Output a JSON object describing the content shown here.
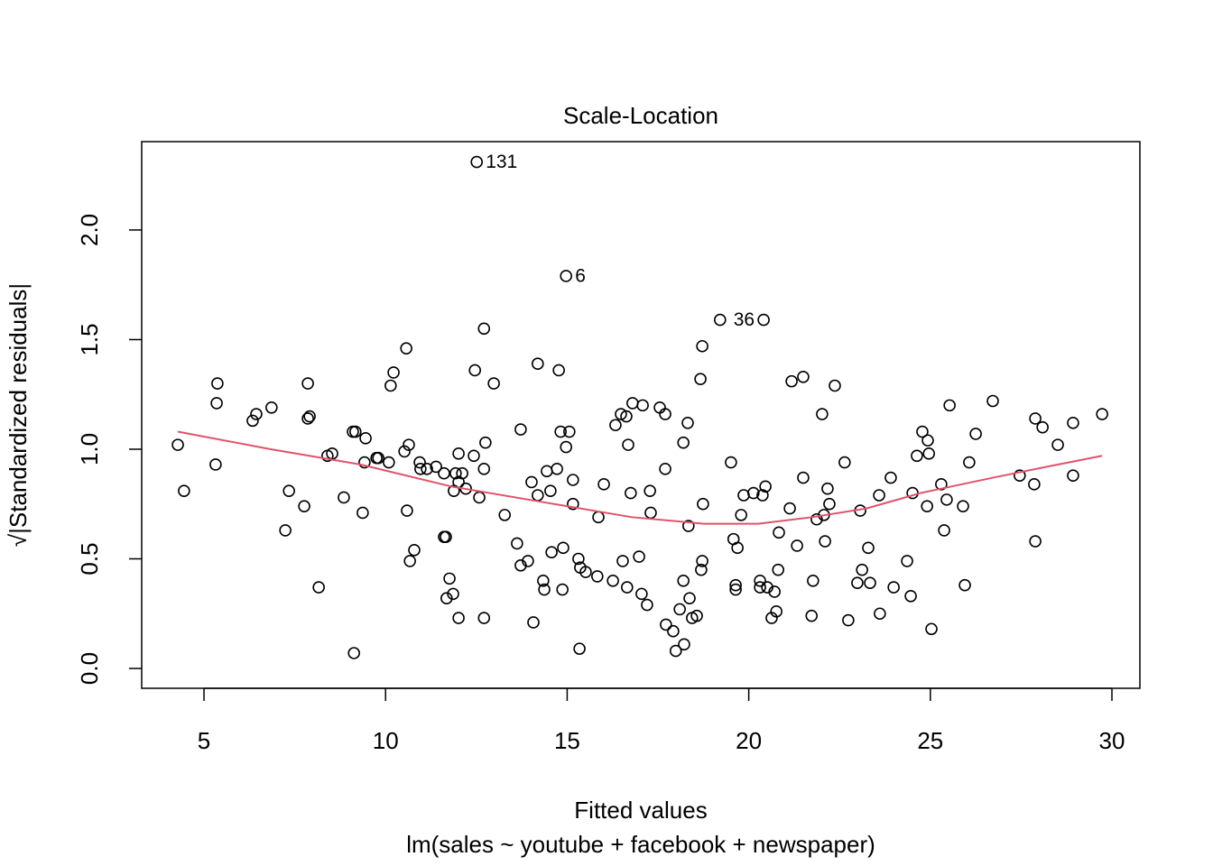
{
  "chart_data": {
    "type": "scatter",
    "title": "Scale-Location",
    "x_label": "Fitted values",
    "subtitle": "lm(sales ~ youtube + facebook + newspaper)",
    "y_label": "√|Standardized residuals|",
    "color": "#000000",
    "x": [
      4.28,
      4.45,
      5.32,
      5.37,
      5.35,
      6.34,
      6.44,
      6.86,
      7.24,
      7.34,
      7.76,
      7.86,
      7.86,
      7.91,
      8.16,
      8.4,
      8.53,
      8.85,
      9.1,
      9.17,
      9.13,
      9.37,
      9.42,
      9.45,
      9.75,
      9.8,
      10.09,
      10.14,
      10.22,
      10.52,
      10.57,
      10.59,
      10.64,
      10.67,
      10.79,
      10.94,
      10.96,
      11.14,
      11.39,
      11.61,
      11.61,
      11.66,
      11.68,
      11.76,
      11.86,
      11.88,
      11.93,
      12.01,
      12.01,
      12.01,
      12.11,
      12.21,
      12.43,
      12.46,
      12.51,
      12.58,
      12.71,
      12.71,
      12.71,
      12.75,
      12.98,
      13.28,
      13.62,
      13.72,
      13.72,
      13.92,
      14.02,
      14.07,
      14.19,
      14.19,
      14.34,
      14.37,
      14.44,
      14.54,
      14.57,
      14.72,
      14.77,
      14.82,
      14.87,
      14.89,
      14.97,
      14.97,
      15.06,
      15.16,
      15.16,
      15.31,
      15.34,
      15.36,
      15.51,
      15.83,
      15.86,
      16.01,
      16.26,
      16.33,
      16.48,
      16.53,
      16.63,
      16.65,
      16.68,
      16.75,
      16.8,
      16.98,
      17.05,
      17.08,
      17.2,
      17.28,
      17.3,
      17.55,
      17.7,
      17.7,
      17.72,
      17.92,
      17.99,
      18.1,
      18.2,
      18.2,
      18.22,
      18.32,
      18.34,
      18.37,
      18.44,
      18.57,
      18.67,
      18.69,
      18.72,
      18.72,
      18.74,
      19.21,
      19.51,
      19.58,
      19.64,
      19.64,
      19.69,
      19.79,
      19.86,
      20.13,
      20.31,
      20.31,
      20.38,
      20.41,
      20.46,
      20.51,
      20.63,
      20.71,
      20.76,
      20.81,
      20.83,
      21.13,
      21.18,
      21.33,
      21.5,
      21.5,
      21.73,
      21.77,
      21.87,
      22.02,
      22.07,
      22.1,
      22.17,
      22.22,
      22.37,
      22.64,
      22.74,
      22.99,
      23.07,
      23.12,
      23.29,
      23.34,
      23.59,
      23.61,
      23.91,
      23.99,
      24.36,
      24.46,
      24.51,
      24.63,
      24.78,
      24.91,
      24.93,
      24.96,
      25.03,
      25.3,
      25.38,
      25.45,
      25.53,
      25.9,
      25.95,
      26.07,
      26.25,
      26.72,
      27.46,
      27.86,
      27.89,
      27.89,
      28.09,
      28.51,
      28.93,
      28.93,
      29.73
    ],
    "values": [
      1.02,
      0.81,
      0.93,
      1.3,
      1.21,
      1.13,
      1.16,
      1.19,
      0.63,
      0.81,
      0.74,
      1.3,
      1.14,
      1.15,
      0.37,
      0.97,
      0.98,
      0.78,
      1.08,
      1.08,
      0.07,
      0.71,
      0.94,
      1.05,
      0.96,
      0.96,
      0.94,
      1.29,
      1.35,
      0.99,
      1.46,
      0.72,
      1.02,
      0.49,
      0.54,
      0.94,
      0.91,
      0.91,
      0.92,
      0.89,
      0.6,
      0.6,
      0.32,
      0.41,
      0.34,
      0.81,
      0.89,
      0.85,
      0.23,
      0.98,
      0.89,
      0.82,
      0.97,
      1.36,
      2.31,
      0.78,
      1.55,
      0.91,
      0.23,
      1.03,
      1.3,
      0.7,
      0.57,
      1.09,
      0.47,
      0.49,
      0.85,
      0.21,
      1.39,
      0.79,
      0.4,
      0.36,
      0.9,
      0.81,
      0.53,
      0.91,
      1.36,
      1.08,
      0.36,
      0.55,
      1.79,
      1.01,
      1.08,
      0.86,
      0.75,
      0.5,
      0.09,
      0.46,
      0.44,
      0.42,
      0.69,
      0.84,
      0.4,
      1.11,
      1.16,
      0.49,
      1.15,
      0.37,
      1.02,
      0.8,
      1.21,
      0.51,
      0.34,
      1.2,
      0.29,
      0.81,
      0.71,
      1.19,
      1.16,
      0.91,
      0.2,
      0.17,
      0.08,
      0.27,
      1.03,
      0.4,
      0.11,
      1.12,
      0.65,
      0.32,
      0.23,
      0.24,
      1.32,
      0.45,
      1.47,
      0.49,
      0.75,
      1.59,
      0.94,
      0.59,
      0.38,
      0.36,
      0.55,
      0.7,
      0.79,
      0.8,
      0.4,
      0.37,
      0.79,
      1.59,
      0.83,
      0.37,
      0.23,
      0.35,
      0.26,
      0.45,
      0.62,
      0.73,
      1.31,
      0.56,
      0.87,
      1.33,
      0.24,
      0.4,
      0.68,
      1.16,
      0.7,
      0.58,
      0.82,
      0.75,
      1.29,
      0.94,
      0.22,
      0.39,
      0.72,
      0.45,
      0.55,
      0.39,
      0.79,
      0.25,
      0.87,
      0.37,
      0.49,
      0.33,
      0.8,
      0.97,
      1.08,
      0.74,
      1.04,
      0.98,
      0.18,
      0.84,
      0.63,
      0.77,
      1.2,
      0.74,
      0.38,
      0.94,
      1.07,
      1.22,
      0.88,
      0.84,
      1.14,
      0.58,
      1.1,
      1.02,
      0.88,
      1.12,
      1.16
    ],
    "annotations": [
      {
        "text": "131",
        "x": 12.51,
        "y": 2.31
      },
      {
        "text": "6",
        "x": 14.97,
        "y": 1.79
      },
      {
        "text": "36",
        "x": 20.41,
        "y": 1.59,
        "side": "left"
      }
    ],
    "smooth": {
      "color": "#DF536B",
      "x": [
        4.28,
        6.84,
        9.32,
        11.81,
        14.29,
        16.78,
        18.77,
        20.26,
        21.75,
        23.24,
        24.73,
        26.72,
        28.21,
        29.73
      ],
      "values": [
        1.08,
        1.0,
        0.93,
        0.83,
        0.76,
        0.69,
        0.66,
        0.66,
        0.69,
        0.73,
        0.8,
        0.87,
        0.92,
        0.97
      ]
    },
    "xlim": [
      3.285,
      30.77
    ],
    "ylim": [
      -0.0905,
      2.403
    ],
    "xticks": [
      5,
      10,
      15,
      20,
      25,
      30
    ],
    "yticks": [
      {
        "value": 0,
        "label": "0.0"
      },
      0.5,
      {
        "value": 1,
        "label": "1.0"
      },
      1.5,
      {
        "value": 2,
        "label": "2.0"
      }
    ]
  }
}
